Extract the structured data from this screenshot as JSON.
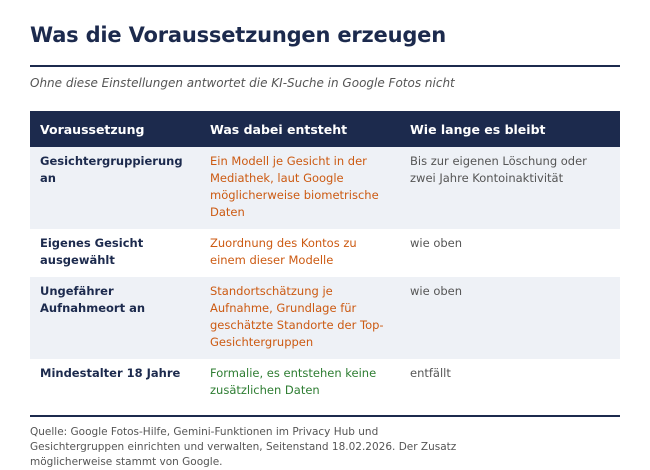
{
  "header": {
    "title": "Was die Voraussetzungen erzeugen",
    "subtitle": "Ohne diese Einstellungen antwortet die KI-Suche in Google Fotos nicht"
  },
  "table": {
    "columns": [
      "Voraussetzung",
      "Was dabei entsteht",
      "Wie lange es bleibt"
    ],
    "rows": [
      {
        "requirement": "Gesichtergruppierung an",
        "result": "Ein Modell je Gesicht in der Mediathek, laut Google möglicherweise biometrische Daten",
        "duration": "Bis zur eigenen Löschung oder zwei Jahre Kontoinaktivität"
      },
      {
        "requirement": "Eigenes Gesicht ausgewählt",
        "result": "Zuordnung des Kontos zu einem dieser Modelle",
        "duration": "wie oben"
      },
      {
        "requirement": "Ungefährer Aufnahmeort an",
        "result": "Standortschätzung je Aufnahme, Grundlage für geschätzte Standorte der Top-Gesichtergruppen",
        "duration": "wie oben"
      },
      {
        "requirement": "Mindestalter 18 Jahre",
        "result": "Formalie, es entstehen keine zusätzlichen Daten",
        "duration": "entfällt"
      }
    ]
  },
  "footer": {
    "source": "Quelle: Google Fotos-Hilfe, Gemini-Funktionen im Privacy Hub und Gesichtergruppen einrichten und verwalten, Seitenstand 18.02.2026. Der Zusatz möglicherweise stammt von Google."
  },
  "colors": {
    "navy": "#1c2a4d",
    "orange": "#cc5a12",
    "green": "#2e7d32",
    "row_shade": "#eef1f6"
  }
}
